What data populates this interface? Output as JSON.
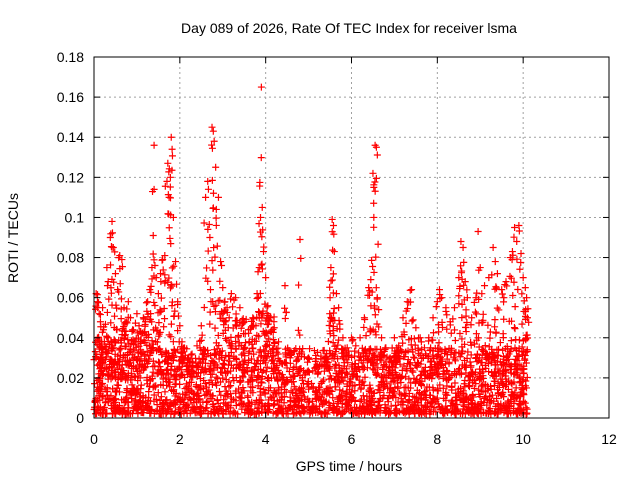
{
  "chart_data": {
    "type": "scatter",
    "title": "Day 089 of 2026, Rate Of TEC Index for receiver lsma",
    "xlabel": "GPS time / hours",
    "ylabel": "ROTI / TECUs",
    "xlim": [
      0,
      12
    ],
    "ylim": [
      0,
      0.18
    ],
    "xticks": [
      0,
      2,
      4,
      6,
      8,
      10,
      12
    ],
    "xtick_labels": [
      "0",
      "2",
      "4",
      "6",
      "8",
      "10",
      "12"
    ],
    "yticks": [
      0,
      0.02,
      0.04,
      0.06,
      0.08,
      0.1,
      0.12,
      0.14,
      0.16,
      0.18
    ],
    "ytick_labels": [
      "0",
      "0.02",
      "0.04",
      "0.06",
      "0.08",
      "0.1",
      "0.12",
      "0.14",
      "0.16",
      "0.18"
    ],
    "grid": true,
    "marker": "+",
    "color": "#ff0000",
    "series": [
      {
        "name": "ROTI",
        "points": [
          [
            0.05,
            0.062
          ],
          [
            0.08,
            0.058
          ],
          [
            0.12,
            0.052
          ],
          [
            0.15,
            0.048
          ],
          [
            0.2,
            0.055
          ],
          [
            0.22,
            0.044
          ],
          [
            0.3,
            0.075
          ],
          [
            0.33,
            0.068
          ],
          [
            0.38,
            0.09
          ],
          [
            0.42,
            0.098
          ],
          [
            0.45,
            0.085
          ],
          [
            0.5,
            0.072
          ],
          [
            0.55,
            0.064
          ],
          [
            0.6,
            0.081
          ],
          [
            0.65,
            0.079
          ],
          [
            0.7,
            0.055
          ],
          [
            0.75,
            0.048
          ],
          [
            0.8,
            0.058
          ],
          [
            0.85,
            0.05
          ],
          [
            0.9,
            0.044
          ],
          [
            0.95,
            0.038
          ],
          [
            1.0,
            0.052
          ],
          [
            1.05,
            0.046
          ],
          [
            1.1,
            0.042
          ],
          [
            1.15,
            0.05
          ],
          [
            1.2,
            0.048
          ],
          [
            1.25,
            0.058
          ],
          [
            1.3,
            0.064
          ],
          [
            1.35,
            0.075
          ],
          [
            1.38,
            0.091
          ],
          [
            1.4,
            0.136
          ],
          [
            1.45,
            0.07
          ],
          [
            1.5,
            0.062
          ],
          [
            1.55,
            0.072
          ],
          [
            1.6,
            0.079
          ],
          [
            1.65,
            0.081
          ],
          [
            1.7,
            0.118
          ],
          [
            1.72,
            0.127
          ],
          [
            1.75,
            0.11
          ],
          [
            1.78,
            0.12
          ],
          [
            1.8,
            0.14
          ],
          [
            1.82,
            0.134
          ],
          [
            1.85,
            0.1
          ],
          [
            1.9,
            0.078
          ],
          [
            1.95,
            0.058
          ],
          [
            2.0,
            0.046
          ],
          [
            2.05,
            0.038
          ],
          [
            2.1,
            0.035
          ],
          [
            2.2,
            0.03
          ],
          [
            2.3,
            0.028
          ],
          [
            2.4,
            0.036
          ],
          [
            2.5,
            0.046
          ],
          [
            2.6,
            0.11
          ],
          [
            2.65,
            0.118
          ],
          [
            2.7,
            0.09
          ],
          [
            2.75,
            0.145
          ],
          [
            2.78,
            0.143
          ],
          [
            2.8,
            0.138
          ],
          [
            2.85,
            0.104
          ],
          [
            2.9,
            0.11
          ],
          [
            2.95,
            0.078
          ],
          [
            3.0,
            0.065
          ],
          [
            3.05,
            0.058
          ],
          [
            3.1,
            0.055
          ],
          [
            3.15,
            0.05
          ],
          [
            3.2,
            0.062
          ],
          [
            3.3,
            0.06
          ],
          [
            3.4,
            0.055
          ],
          [
            3.5,
            0.048
          ],
          [
            3.6,
            0.044
          ],
          [
            3.7,
            0.05
          ],
          [
            3.8,
            0.062
          ],
          [
            3.85,
            0.075
          ],
          [
            3.88,
            0.1
          ],
          [
            3.9,
            0.165
          ],
          [
            3.92,
            0.105
          ],
          [
            3.95,
            0.083
          ],
          [
            4.0,
            0.07
          ],
          [
            4.05,
            0.056
          ],
          [
            4.1,
            0.05
          ],
          [
            4.2,
            0.045
          ],
          [
            4.3,
            0.038
          ],
          [
            4.45,
            0.066
          ],
          [
            4.8,
            0.089
          ],
          [
            5.0,
            0.03
          ],
          [
            5.2,
            0.026
          ],
          [
            5.4,
            0.03
          ],
          [
            5.5,
            0.06
          ],
          [
            5.52,
            0.075
          ],
          [
            5.55,
            0.099
          ],
          [
            5.58,
            0.096
          ],
          [
            5.6,
            0.083
          ],
          [
            5.65,
            0.062
          ],
          [
            5.7,
            0.055
          ],
          [
            5.8,
            0.04
          ],
          [
            5.9,
            0.035
          ],
          [
            6.0,
            0.04
          ],
          [
            6.1,
            0.036
          ],
          [
            6.2,
            0.04
          ],
          [
            6.3,
            0.05
          ],
          [
            6.4,
            0.065
          ],
          [
            6.45,
            0.069
          ],
          [
            6.5,
            0.122
          ],
          [
            6.52,
            0.115
          ],
          [
            6.55,
            0.136
          ],
          [
            6.58,
            0.135
          ],
          [
            6.6,
            0.06
          ],
          [
            6.7,
            0.04
          ],
          [
            6.8,
            0.035
          ],
          [
            6.9,
            0.03
          ],
          [
            7.0,
            0.04
          ],
          [
            7.1,
            0.036
          ],
          [
            7.2,
            0.05
          ],
          [
            7.3,
            0.058
          ],
          [
            7.4,
            0.064
          ],
          [
            7.5,
            0.045
          ],
          [
            7.6,
            0.04
          ],
          [
            7.7,
            0.035
          ],
          [
            7.8,
            0.04
          ],
          [
            7.9,
            0.05
          ],
          [
            8.0,
            0.058
          ],
          [
            8.05,
            0.064
          ],
          [
            8.1,
            0.06
          ],
          [
            8.2,
            0.055
          ],
          [
            8.3,
            0.048
          ],
          [
            8.4,
            0.055
          ],
          [
            8.5,
            0.07
          ],
          [
            8.55,
            0.088
          ],
          [
            8.6,
            0.085
          ],
          [
            8.65,
            0.068
          ],
          [
            8.7,
            0.06
          ],
          [
            8.8,
            0.05
          ],
          [
            8.9,
            0.06
          ],
          [
            8.95,
            0.093
          ],
          [
            9.0,
            0.075
          ],
          [
            9.1,
            0.066
          ],
          [
            9.2,
            0.07
          ],
          [
            9.3,
            0.085
          ],
          [
            9.35,
            0.078
          ],
          [
            9.4,
            0.072
          ],
          [
            9.5,
            0.064
          ],
          [
            9.55,
            0.06
          ],
          [
            9.6,
            0.068
          ],
          [
            9.7,
            0.08
          ],
          [
            9.75,
            0.083
          ],
          [
            9.8,
            0.095
          ],
          [
            9.85,
            0.088
          ],
          [
            9.9,
            0.096
          ],
          [
            9.95,
            0.082
          ],
          [
            10.0,
            0.07
          ],
          [
            10.05,
            0.065
          ],
          [
            10.08,
            0.06
          ],
          [
            10.1,
            0.05
          ]
        ]
      }
    ],
    "dense_band": {
      "x_range": [
        0,
        10.1
      ],
      "y_range": [
        0.002,
        0.035
      ],
      "note": "dense cloud of low ROTI values throughout observation period"
    }
  }
}
